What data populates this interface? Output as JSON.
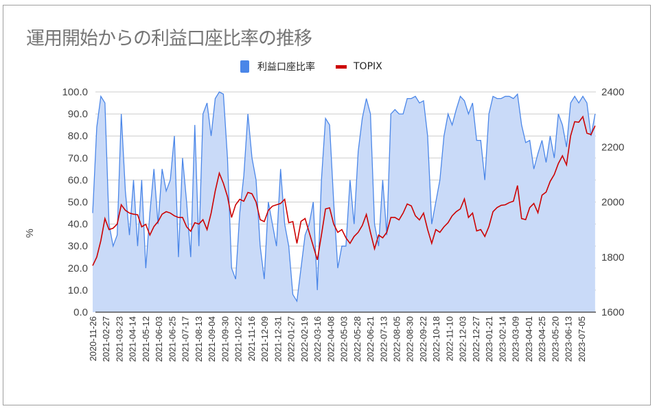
{
  "chart_data": {
    "type": "area+line",
    "title": "運用開始からの利益口座比率の推移",
    "ylabel": "%",
    "ylabel_right": "",
    "legend_position": "top",
    "grid": true,
    "ylim": [
      0,
      100
    ],
    "ylim_right": [
      1600,
      2400
    ],
    "y_ticks": [
      "0.0",
      "10.0",
      "20.0",
      "30.0",
      "40.0",
      "50.0",
      "60.0",
      "70.0",
      "80.0",
      "90.0",
      "100.0"
    ],
    "y_ticks_right": [
      "1600",
      "1800",
      "2000",
      "2200",
      "2400"
    ],
    "x_tick_labels": [
      "2020-11-26",
      "2021-02-27",
      "2021-03-23",
      "2021-04-14",
      "2021-05-12",
      "2021-06-03",
      "2021-06-25",
      "2021-07-17",
      "2021-08-13",
      "2021-09-04",
      "2021-09-30",
      "2021-10-22",
      "2021-11-16",
      "2021-12-09",
      "2021-12-31",
      "2022-01-27",
      "2022-02-19",
      "2022-03-16",
      "2022-04-08",
      "2022-05-03",
      "2022-05-28",
      "2022-06-21",
      "2022-07-13",
      "2022-08-05",
      "2022-08-30",
      "2022-09-22",
      "2022-10-18",
      "2022-11-10",
      "2022-12-03",
      "2022-12-27",
      "2023-01-21",
      "2023-02-14",
      "2023-03-09",
      "2023-04-01",
      "2023-04-25",
      "2023-05-20",
      "2023-06-13",
      "2023-07-05"
    ],
    "points_per_tick": 4,
    "series": [
      {
        "name": "利益口座比率",
        "axis": "left",
        "style": "area",
        "color": "#4a86e8",
        "fill": "#c9daf8",
        "values": [
          45,
          84,
          98,
          95,
          40,
          30,
          35,
          90,
          55,
          35,
          60,
          30,
          60,
          20,
          45,
          65,
          40,
          65,
          55,
          60,
          80,
          25,
          70,
          50,
          25,
          85,
          30,
          90,
          95,
          80,
          97,
          100,
          99,
          70,
          20,
          15,
          45,
          62,
          90,
          70,
          60,
          30,
          15,
          50,
          40,
          30,
          65,
          40,
          30,
          8,
          5,
          20,
          35,
          40,
          50,
          10,
          60,
          88,
          85,
          50,
          20,
          30,
          30,
          60,
          40,
          73,
          88,
          97,
          90,
          40,
          30,
          60,
          35,
          90,
          92,
          90,
          90,
          97,
          97,
          98,
          95,
          96,
          80,
          40,
          50,
          60,
          80,
          90,
          85,
          92,
          98,
          96,
          90,
          95,
          78,
          78,
          60,
          90,
          98,
          97,
          97,
          98,
          98,
          97,
          99,
          85,
          77,
          78,
          65,
          72,
          78,
          68,
          80,
          70,
          90,
          85,
          75,
          95,
          98,
          95,
          98,
          95,
          80,
          90
        ]
      },
      {
        "name": "TOPIX",
        "axis": "right",
        "style": "line",
        "color": "#cc0000",
        "values": [
          1769,
          1800,
          1860,
          1940,
          1900,
          1905,
          1920,
          1990,
          1970,
          1960,
          1956,
          1954,
          1910,
          1919,
          1880,
          1911,
          1929,
          1956,
          1965,
          1960,
          1950,
          1944,
          1944,
          1910,
          1894,
          1925,
          1920,
          1936,
          1900,
          1960,
          2040,
          2105,
          2068,
          2020,
          1944,
          1990,
          2010,
          2003,
          2035,
          2030,
          2000,
          1936,
          1929,
          1970,
          1985,
          1990,
          1995,
          2010,
          1925,
          1929,
          1850,
          1930,
          1940,
          1890,
          1840,
          1790,
          1880,
          1975,
          1979,
          1920,
          1890,
          1900,
          1870,
          1850,
          1875,
          1890,
          1915,
          1955,
          1890,
          1830,
          1880,
          1870,
          1890,
          1944,
          1944,
          1935,
          1960,
          1993,
          1986,
          1950,
          1935,
          1960,
          1900,
          1850,
          1900,
          1890,
          1910,
          1925,
          1950,
          1965,
          1975,
          2011,
          1944,
          1960,
          1895,
          1900,
          1875,
          1911,
          1965,
          1980,
          1988,
          1990,
          1998,
          2003,
          2060,
          1940,
          1936,
          1980,
          1995,
          1961,
          2025,
          2036,
          2075,
          2100,
          2140,
          2168,
          2135,
          2240,
          2292,
          2290,
          2310,
          2250,
          2245,
          2277
        ]
      }
    ]
  }
}
